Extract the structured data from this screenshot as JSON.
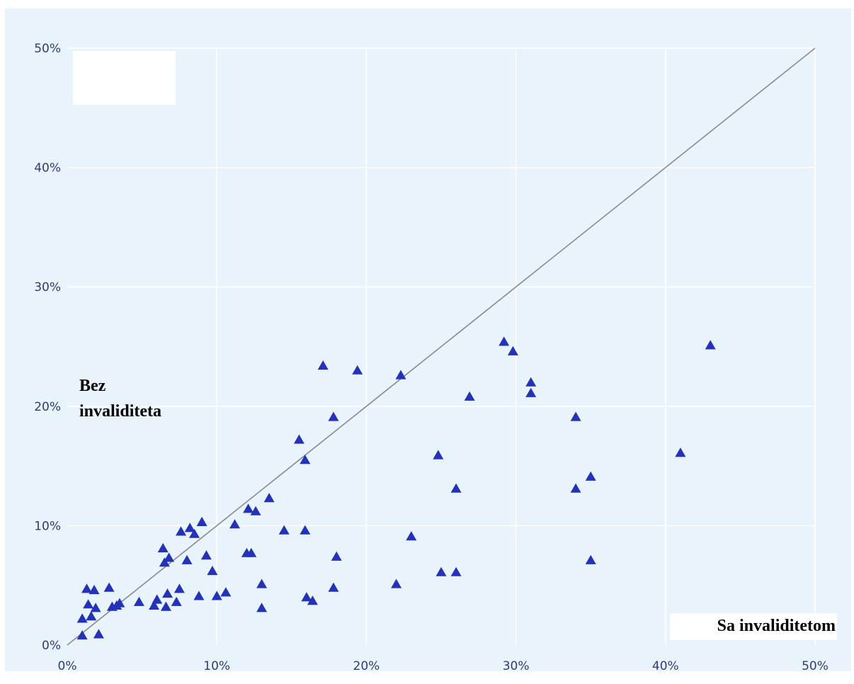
{
  "chart_data": {
    "type": "scatter",
    "title": "",
    "xlabel": "Sa invaliditetom",
    "ylabel_lines": [
      "Bez",
      "invaliditeta"
    ],
    "xlim": [
      0,
      50
    ],
    "ylim": [
      0,
      50
    ],
    "x_ticks": [
      0,
      10,
      20,
      30,
      40,
      50
    ],
    "y_ticks": [
      0,
      10,
      20,
      30,
      40,
      50
    ],
    "x_tick_labels": [
      "0%",
      "10%",
      "20%",
      "30%",
      "40%",
      "50%"
    ],
    "y_tick_labels": [
      "0%",
      "10%",
      "20%",
      "30%",
      "40%",
      "50%"
    ],
    "grid": true,
    "reference_line": {
      "from": [
        0,
        0
      ],
      "to": [
        50,
        50
      ],
      "color": "#8a8a8a"
    },
    "marker": "triangle",
    "colors": {
      "plot_bg": "#e8f3fc",
      "grid": "#ffffff",
      "marker": "#2432b8",
      "tick_text": "#2f3b75"
    },
    "points": [
      {
        "x": 1.0,
        "y": 0.8
      },
      {
        "x": 2.1,
        "y": 0.9
      },
      {
        "x": 1.0,
        "y": 2.2
      },
      {
        "x": 1.6,
        "y": 2.4
      },
      {
        "x": 1.4,
        "y": 3.4
      },
      {
        "x": 1.9,
        "y": 3.1
      },
      {
        "x": 1.3,
        "y": 4.7
      },
      {
        "x": 1.8,
        "y": 4.6
      },
      {
        "x": 2.8,
        "y": 4.8
      },
      {
        "x": 3.0,
        "y": 3.2
      },
      {
        "x": 3.3,
        "y": 3.3
      },
      {
        "x": 3.5,
        "y": 3.5
      },
      {
        "x": 4.8,
        "y": 3.6
      },
      {
        "x": 5.8,
        "y": 3.3
      },
      {
        "x": 6.0,
        "y": 3.8
      },
      {
        "x": 6.6,
        "y": 3.2
      },
      {
        "x": 6.7,
        "y": 4.3
      },
      {
        "x": 7.3,
        "y": 3.6
      },
      {
        "x": 7.5,
        "y": 4.7
      },
      {
        "x": 6.4,
        "y": 8.1
      },
      {
        "x": 6.5,
        "y": 6.9
      },
      {
        "x": 6.8,
        "y": 7.3
      },
      {
        "x": 7.6,
        "y": 9.5
      },
      {
        "x": 8.0,
        "y": 7.1
      },
      {
        "x": 8.2,
        "y": 9.8
      },
      {
        "x": 8.5,
        "y": 9.3
      },
      {
        "x": 8.8,
        "y": 4.1
      },
      {
        "x": 9.0,
        "y": 10.3
      },
      {
        "x": 9.3,
        "y": 7.5
      },
      {
        "x": 9.7,
        "y": 6.2
      },
      {
        "x": 10.0,
        "y": 4.1
      },
      {
        "x": 10.6,
        "y": 4.4
      },
      {
        "x": 11.2,
        "y": 10.1
      },
      {
        "x": 12.0,
        "y": 7.7
      },
      {
        "x": 12.3,
        "y": 7.7
      },
      {
        "x": 12.1,
        "y": 11.4
      },
      {
        "x": 12.6,
        "y": 11.2
      },
      {
        "x": 13.0,
        "y": 5.1
      },
      {
        "x": 13.0,
        "y": 3.1
      },
      {
        "x": 13.5,
        "y": 12.3
      },
      {
        "x": 14.5,
        "y": 9.6
      },
      {
        "x": 15.5,
        "y": 17.2
      },
      {
        "x": 15.9,
        "y": 15.5
      },
      {
        "x": 15.9,
        "y": 9.6
      },
      {
        "x": 16.0,
        "y": 4.0
      },
      {
        "x": 16.4,
        "y": 3.7
      },
      {
        "x": 17.1,
        "y": 23.4
      },
      {
        "x": 17.8,
        "y": 19.1
      },
      {
        "x": 17.8,
        "y": 4.8
      },
      {
        "x": 18.0,
        "y": 7.4
      },
      {
        "x": 19.4,
        "y": 23.0
      },
      {
        "x": 22.0,
        "y": 5.1
      },
      {
        "x": 22.3,
        "y": 22.6
      },
      {
        "x": 23.0,
        "y": 9.1
      },
      {
        "x": 24.8,
        "y": 15.9
      },
      {
        "x": 25.0,
        "y": 6.1
      },
      {
        "x": 26.0,
        "y": 13.1
      },
      {
        "x": 26.0,
        "y": 6.1
      },
      {
        "x": 26.9,
        "y": 20.8
      },
      {
        "x": 29.2,
        "y": 25.4
      },
      {
        "x": 29.8,
        "y": 24.6
      },
      {
        "x": 31.0,
        "y": 22.0
      },
      {
        "x": 31.0,
        "y": 21.1
      },
      {
        "x": 34.0,
        "y": 19.1
      },
      {
        "x": 34.0,
        "y": 13.1
      },
      {
        "x": 35.0,
        "y": 14.1
      },
      {
        "x": 35.0,
        "y": 7.1
      },
      {
        "x": 41.0,
        "y": 16.1
      },
      {
        "x": 43.0,
        "y": 25.1
      }
    ]
  }
}
